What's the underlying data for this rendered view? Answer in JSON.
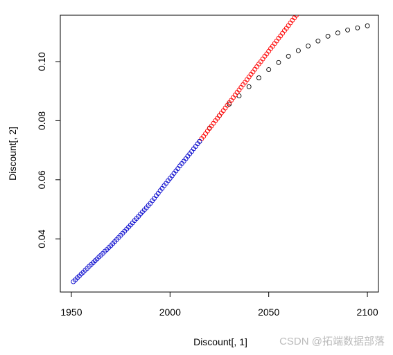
{
  "chart_data": {
    "type": "scatter",
    "xlabel": "Discount[, 1]",
    "ylabel": "Discount[, 2]",
    "watermark": "CSDN @拓端数据部落",
    "xlim": [
      1944.4,
      2105.6
    ],
    "ylim": [
      0.022,
      0.1157
    ],
    "xticks": [
      1950,
      2000,
      2050,
      2100
    ],
    "yticks": [
      0.04,
      0.06,
      0.08,
      {
        "value": 0.1,
        "label": "0.10"
      }
    ],
    "series": [
      {
        "color": "#000000",
        "x": [
          2015,
          2020,
          2025,
          2030,
          2035,
          2040,
          2045,
          2050,
          2055,
          2060,
          2065,
          2070,
          2075,
          2080,
          2085,
          2090,
          2095,
          2100
        ],
        "values": [
          0.073,
          0.0775,
          0.0817,
          0.0856,
          0.0884,
          0.0915,
          0.0945,
          0.0973,
          0.0997,
          0.1018,
          0.1037,
          0.1053,
          0.107,
          0.1086,
          0.1097,
          0.1107,
          0.1114,
          0.1121
        ]
      },
      {
        "color": "#ff0000",
        "x": [
          2016,
          2017,
          2018,
          2019,
          2020,
          2021,
          2022,
          2023,
          2024,
          2025,
          2026,
          2027,
          2028,
          2029,
          2030,
          2031,
          2032,
          2033,
          2034,
          2035,
          2036,
          2037,
          2038,
          2039,
          2040,
          2041,
          2042,
          2043,
          2044,
          2045,
          2046,
          2047,
          2048,
          2049,
          2050,
          2051,
          2052,
          2053,
          2054,
          2055,
          2056,
          2057,
          2058,
          2059,
          2060,
          2061,
          2062,
          2063,
          2064
        ],
        "values": [
          0.0739,
          0.0747,
          0.0756,
          0.0765,
          0.0774,
          0.0782,
          0.0791,
          0.08,
          0.0808,
          0.0817,
          0.0826,
          0.0834,
          0.0843,
          0.0852,
          0.0861,
          0.0869,
          0.0878,
          0.0887,
          0.0896,
          0.0904,
          0.0913,
          0.0922,
          0.093,
          0.0939,
          0.0948,
          0.0957,
          0.0965,
          0.0974,
          0.0983,
          0.0992,
          0.1,
          0.1009,
          0.1018,
          0.1026,
          0.1035,
          0.1044,
          0.1052,
          0.1061,
          0.107,
          0.1079,
          0.1087,
          0.1096,
          0.1105,
          0.1113,
          0.1122,
          0.1131,
          0.114,
          0.1148,
          0.1157
        ]
      },
      {
        "color": "#0000cc",
        "x": [
          1951,
          1952,
          1953,
          1954,
          1955,
          1956,
          1957,
          1958,
          1959,
          1960,
          1961,
          1962,
          1963,
          1964,
          1965,
          1966,
          1967,
          1968,
          1969,
          1970,
          1971,
          1972,
          1973,
          1974,
          1975,
          1976,
          1977,
          1978,
          1979,
          1980,
          1981,
          1982,
          1983,
          1984,
          1985,
          1986,
          1987,
          1988,
          1989,
          1990,
          1991,
          1992,
          1993,
          1994,
          1995,
          1996,
          1997,
          1998,
          1999,
          2000,
          2001,
          2002,
          2003,
          2004,
          2005,
          2006,
          2007,
          2008,
          2009,
          2010,
          2011,
          2012,
          2013,
          2014,
          2015
        ],
        "values": [
          0.0255,
          0.0261,
          0.0268,
          0.0274,
          0.0281,
          0.0287,
          0.0294,
          0.03,
          0.0307,
          0.0313,
          0.0319,
          0.0326,
          0.0332,
          0.0339,
          0.0345,
          0.0351,
          0.0358,
          0.0364,
          0.0371,
          0.0377,
          0.0384,
          0.0391,
          0.0398,
          0.0405,
          0.0412,
          0.0419,
          0.0426,
          0.0433,
          0.044,
          0.0447,
          0.0454,
          0.0462,
          0.0469,
          0.0476,
          0.0484,
          0.0491,
          0.0498,
          0.0505,
          0.0513,
          0.052,
          0.0529,
          0.0537,
          0.0546,
          0.0554,
          0.0563,
          0.0571,
          0.058,
          0.0588,
          0.0597,
          0.0605,
          0.0613,
          0.0622,
          0.063,
          0.0638,
          0.0647,
          0.0655,
          0.0663,
          0.0671,
          0.068,
          0.0688,
          0.0696,
          0.0705,
          0.0713,
          0.0722,
          0.073
        ]
      }
    ]
  }
}
